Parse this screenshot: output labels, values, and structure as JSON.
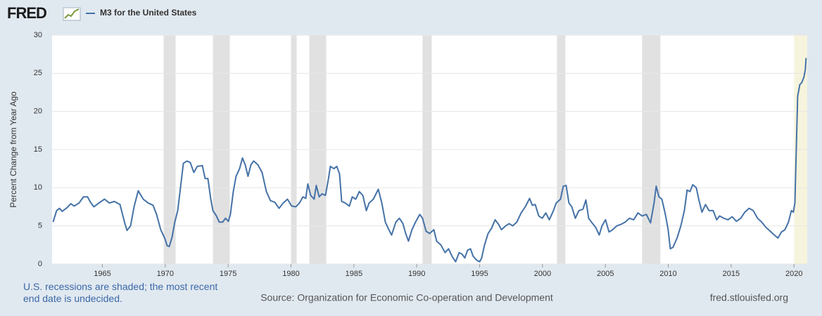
{
  "chart_data": {
    "type": "line",
    "logo": "FRED",
    "y_label": "Percent Change from Year Ago",
    "note": "U.S. recessions are shaded; the most recent end date is undecided.",
    "source": "Source: Organization for Economic Co-operation and Development",
    "site": "fred.stlouisfed.org",
    "xlim": [
      1961.0,
      2021.05
    ],
    "xticks": [
      1965,
      1970,
      1975,
      1980,
      1985,
      1990,
      1995,
      2000,
      2005,
      2010,
      2015,
      2020
    ],
    "ylim": [
      0,
      30
    ],
    "yticks": [
      0,
      5,
      10,
      15,
      20,
      25,
      30
    ],
    "grid": true,
    "recession_color": "#e1e1e1",
    "undecided_recession_color": "#f6f4dc",
    "recessions": [
      {
        "start": 1969.87,
        "end": 1970.82
      },
      {
        "start": 1973.79,
        "end": 1975.13
      },
      {
        "start": 1980.0,
        "end": 1980.45
      },
      {
        "start": 1981.45,
        "end": 1982.8
      },
      {
        "start": 1990.46,
        "end": 1991.19
      },
      {
        "start": 2001.15,
        "end": 2001.82
      },
      {
        "start": 2007.92,
        "end": 2009.37
      },
      {
        "start": 2020.01,
        "end": null
      }
    ],
    "series": [
      {
        "name": "M3 for the United States",
        "color": "#4572a7",
        "x": [
          1961.08,
          1961.36,
          1961.59,
          1961.81,
          1962.2,
          1962.48,
          1962.76,
          1963.15,
          1963.49,
          1963.82,
          1964.05,
          1964.33,
          1964.72,
          1965.17,
          1965.56,
          1965.95,
          1966.4,
          1966.79,
          1966.96,
          1967.24,
          1967.52,
          1967.85,
          1968.25,
          1968.64,
          1969.03,
          1969.31,
          1969.64,
          1969.98,
          1970.15,
          1970.32,
          1970.54,
          1970.76,
          1970.99,
          1971.21,
          1971.44,
          1971.72,
          1971.99,
          1972.27,
          1972.55,
          1972.95,
          1973.17,
          1973.39,
          1973.62,
          1973.79,
          1974.07,
          1974.29,
          1974.57,
          1974.79,
          1975.02,
          1975.18,
          1975.41,
          1975.63,
          1975.91,
          1976.14,
          1976.36,
          1976.58,
          1976.81,
          1977.03,
          1977.37,
          1977.7,
          1978.04,
          1978.37,
          1978.71,
          1979.05,
          1979.38,
          1979.72,
          1980.05,
          1980.39,
          1980.67,
          1980.95,
          1981.17,
          1981.34,
          1981.56,
          1981.84,
          1982.01,
          1982.24,
          1982.46,
          1982.74,
          1982.96,
          1983.13,
          1983.41,
          1983.64,
          1983.86,
          1984.03,
          1984.31,
          1984.64,
          1984.87,
          1985.15,
          1985.43,
          1985.71,
          1985.99,
          1986.21,
          1986.55,
          1986.94,
          1987.22,
          1987.5,
          1987.78,
          1988.0,
          1988.34,
          1988.62,
          1988.9,
          1989.12,
          1989.34,
          1989.62,
          1989.9,
          1990.24,
          1990.46,
          1990.74,
          1991.02,
          1991.36,
          1991.58,
          1991.92,
          1992.25,
          1992.53,
          1992.81,
          1993.09,
          1993.37,
          1993.6,
          1993.82,
          1994.04,
          1994.27,
          1994.49,
          1994.77,
          1995.0,
          1995.16,
          1995.39,
          1995.67,
          1995.95,
          1996.23,
          1996.51,
          1996.73,
          1997.07,
          1997.35,
          1997.63,
          1997.96,
          1998.3,
          1998.63,
          1998.97,
          1999.19,
          1999.42,
          1999.7,
          1999.98,
          2000.26,
          2000.54,
          2000.87,
          2001.09,
          2001.43,
          2001.65,
          2001.88,
          2002.1,
          2002.33,
          2002.61,
          2002.89,
          2003.22,
          2003.45,
          2003.67,
          2003.89,
          2004.23,
          2004.51,
          2004.73,
          2005.01,
          2005.29,
          2005.57,
          2005.91,
          2006.24,
          2006.58,
          2006.91,
          2007.25,
          2007.59,
          2007.92,
          2008.26,
          2008.59,
          2008.87,
          2009.04,
          2009.26,
          2009.49,
          2009.77,
          2009.99,
          2010.16,
          2010.38,
          2010.72,
          2011.0,
          2011.28,
          2011.5,
          2011.73,
          2011.95,
          2012.23,
          2012.45,
          2012.68,
          2012.96,
          2013.24,
          2013.57,
          2013.85,
          2014.08,
          2014.41,
          2014.75,
          2015.08,
          2015.42,
          2015.76,
          2016.09,
          2016.43,
          2016.76,
          2017.1,
          2017.43,
          2017.77,
          2018.11,
          2018.44,
          2018.72,
          2019.0,
          2019.28,
          2019.56,
          2019.79,
          2019.95,
          2020.07,
          2020.18,
          2020.29,
          2020.46,
          2020.62,
          2020.79,
          2020.9,
          2020.96
        ],
        "values": [
          5.5,
          7.0,
          7.3,
          6.9,
          7.4,
          7.9,
          7.6,
          8.0,
          8.8,
          8.8,
          8.1,
          7.5,
          8.0,
          8.5,
          8.0,
          8.2,
          7.8,
          5.3,
          4.4,
          5.0,
          7.5,
          9.6,
          8.5,
          8.0,
          7.7,
          6.5,
          4.5,
          3.3,
          2.4,
          2.3,
          3.5,
          5.5,
          7.0,
          10.0,
          13.2,
          13.5,
          13.3,
          12.0,
          12.8,
          12.9,
          11.2,
          11.2,
          8.5,
          7.0,
          6.3,
          5.5,
          5.5,
          6.0,
          5.6,
          6.5,
          9.5,
          11.5,
          12.5,
          13.9,
          13.0,
          11.5,
          13.0,
          13.5,
          13.0,
          12.0,
          9.5,
          8.3,
          8.1,
          7.3,
          8.0,
          8.5,
          7.6,
          7.5,
          8.0,
          8.8,
          8.6,
          10.5,
          9.0,
          8.5,
          10.3,
          8.8,
          9.2,
          9.0,
          11.0,
          12.8,
          12.5,
          12.8,
          11.8,
          8.2,
          8.0,
          7.6,
          8.8,
          8.5,
          9.5,
          9.0,
          7.0,
          8.0,
          8.5,
          9.8,
          8.0,
          5.5,
          4.5,
          3.8,
          5.5,
          6.0,
          5.3,
          4.0,
          3.0,
          4.5,
          5.5,
          6.5,
          6.0,
          4.3,
          4.0,
          4.5,
          3.0,
          2.5,
          1.5,
          2.0,
          1.0,
          0.3,
          1.5,
          1.3,
          0.8,
          1.8,
          2.0,
          1.0,
          0.5,
          0.3,
          0.8,
          2.5,
          4.0,
          4.7,
          5.8,
          5.2,
          4.5,
          5.0,
          5.3,
          5.0,
          5.5,
          6.7,
          7.5,
          8.6,
          7.7,
          7.8,
          6.3,
          6.0,
          6.7,
          5.8,
          7.0,
          8.0,
          8.5,
          10.2,
          10.3,
          8.0,
          7.5,
          6.0,
          7.0,
          7.2,
          8.4,
          6.0,
          5.5,
          4.8,
          3.8,
          5.0,
          5.8,
          4.2,
          4.5,
          5.0,
          5.2,
          5.5,
          6.0,
          5.8,
          6.7,
          6.3,
          6.5,
          5.4,
          8.0,
          10.2,
          8.8,
          8.5,
          6.5,
          4.5,
          2.0,
          2.2,
          3.5,
          5.0,
          7.0,
          9.7,
          9.5,
          10.4,
          10.0,
          8.3,
          6.8,
          7.8,
          7.0,
          7.0,
          5.8,
          6.3,
          6.0,
          5.8,
          6.2,
          5.6,
          6.0,
          6.8,
          7.3,
          7.0,
          6.0,
          5.5,
          4.8,
          4.3,
          3.8,
          3.4,
          4.2,
          4.5,
          5.5,
          7.0,
          6.8,
          8.0,
          15.0,
          22.0,
          23.5,
          23.8,
          24.5,
          25.5,
          27.0
        ]
      }
    ]
  }
}
